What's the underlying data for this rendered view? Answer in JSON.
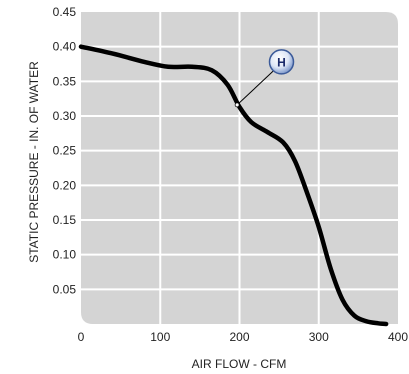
{
  "chart_data": {
    "type": "line",
    "title": "",
    "xlabel": "AIR FLOW - CFM",
    "ylabel": "STATIC PRESSURE - IN. OF WATER",
    "xlim": [
      0,
      400
    ],
    "ylim": [
      0,
      0.45
    ],
    "x_ticks": [
      "0",
      "100",
      "200",
      "300",
      "400"
    ],
    "y_ticks": [
      "0.05",
      "0.10",
      "0.15",
      "0.20",
      "0.25",
      "0.30",
      "0.35",
      "0.40",
      "0.45"
    ],
    "grid": true,
    "colors": {
      "plot_bg": "#d4d4d4",
      "grid": "#ffffff",
      "curve": "#000000",
      "badge": "#6f8cc4"
    },
    "series": [
      {
        "x": [
          0,
          40,
          80,
          110,
          140,
          165,
          185,
          200,
          215,
          235,
          255,
          270,
          285,
          300,
          315,
          330,
          345,
          360,
          375,
          385
        ],
        "y": [
          0.4,
          0.39,
          0.378,
          0.371,
          0.371,
          0.366,
          0.345,
          0.313,
          0.291,
          0.277,
          0.262,
          0.235,
          0.19,
          0.14,
          0.08,
          0.035,
          0.012,
          0.004,
          0.001,
          0
        ]
      }
    ],
    "annotations": [
      {
        "label": "H",
        "point": [
          197,
          0.316
        ],
        "badge_at": [
          253,
          0.378
        ]
      }
    ]
  }
}
